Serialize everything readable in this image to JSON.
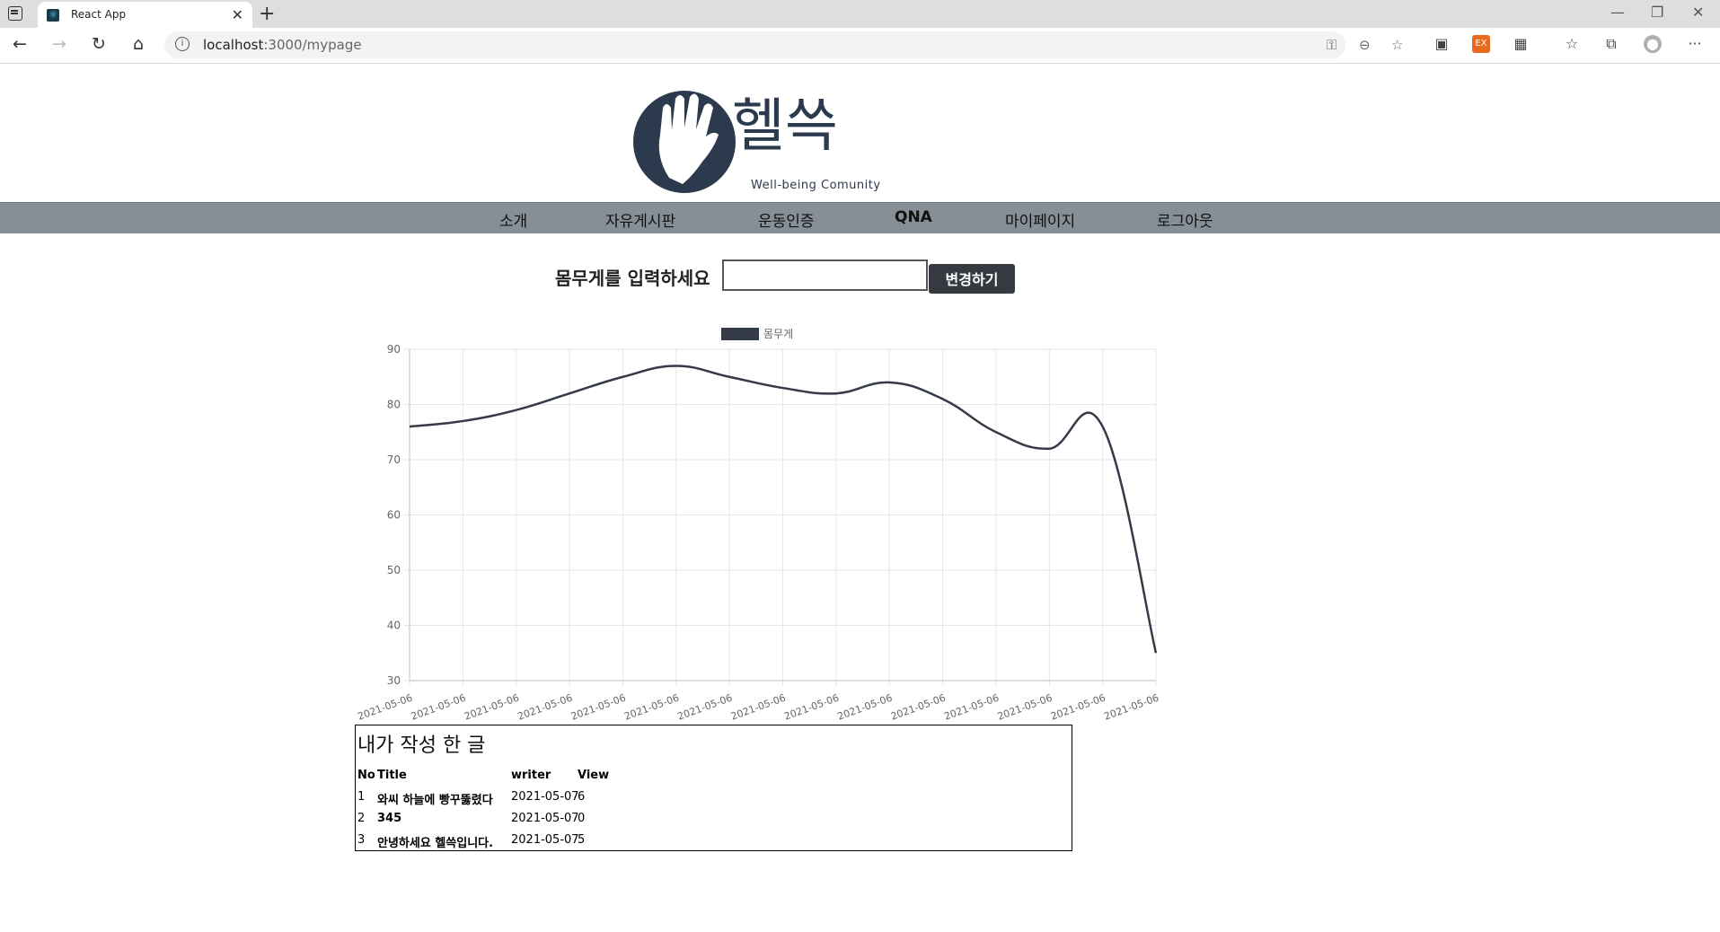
{
  "browser": {
    "tab_title": "React App",
    "url_host": "localhost",
    "url_path": ":3000/mypage"
  },
  "logo": {
    "title": "헬쓱",
    "subtitle": "Well-being Comunity"
  },
  "nav": {
    "items": [
      "소개",
      "자유게시판",
      "운동인증",
      "QNA",
      "마이페이지",
      "로그아웃"
    ]
  },
  "weight_form": {
    "label": "몸무게를 입력하세요",
    "input_value": "",
    "button_label": "변경하기"
  },
  "colors": {
    "line": "#343a48",
    "nav_bg": "#868e96",
    "button_bg": "#343a40"
  },
  "chart_data": {
    "type": "line",
    "x": [
      "2021-05-06",
      "2021-05-06",
      "2021-05-06",
      "2021-05-06",
      "2021-05-06",
      "2021-05-06",
      "2021-05-06",
      "2021-05-06",
      "2021-05-06",
      "2021-05-06",
      "2021-05-06",
      "2021-05-06",
      "2021-05-06",
      "2021-05-06",
      "2021-05-06"
    ],
    "series": [
      {
        "name": "몸무게",
        "values": [
          76,
          77,
          79,
          82,
          85,
          87,
          85,
          83,
          82,
          84,
          81,
          75,
          72,
          76,
          35
        ]
      }
    ],
    "yticks": [
      90,
      80,
      70,
      60,
      50,
      40,
      30
    ],
    "ylim": [
      30,
      90
    ],
    "grid": true,
    "legend": "top-center"
  },
  "posts": {
    "title": "내가 작성 한 글",
    "headers": {
      "no": "No",
      "title": "Title",
      "writer": "writer",
      "view": "View"
    },
    "rows": [
      {
        "no": "1",
        "title": "와씨 하늘에 빵꾸뚫렸다",
        "writer": "2021-05-07",
        "view": "6"
      },
      {
        "no": "2",
        "title": "345",
        "writer": "2021-05-07",
        "view": "0"
      },
      {
        "no": "3",
        "title": "안녕하세요 헬쓱입니다.",
        "writer": "2021-05-07",
        "view": "5"
      }
    ]
  }
}
